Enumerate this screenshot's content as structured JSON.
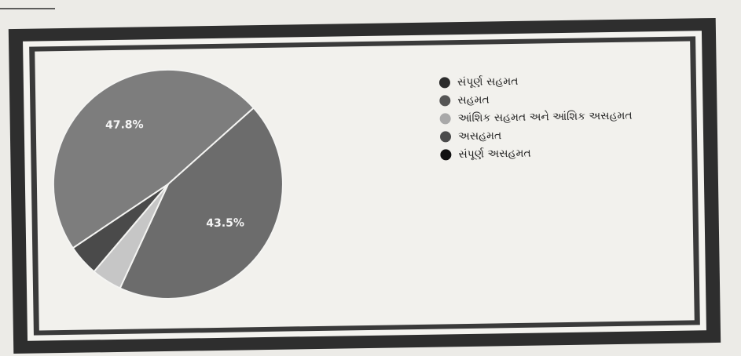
{
  "chart_data": {
    "type": "pie",
    "title": "",
    "legend_position": "right",
    "slices": [
      {
        "label": "સંપૂર્ણ સહમત",
        "value": 47.8,
        "value_label": "47.8%",
        "color": "#7d7d7d"
      },
      {
        "label": "સહમત",
        "value": 43.5,
        "value_label": "43.5%",
        "color": "#6c6c6c"
      },
      {
        "label": "આંશિક સહમત અને આંશિક અસહમત",
        "value": 4.3,
        "value_label": "",
        "color": "#c6c6c6"
      },
      {
        "label": "અસહમત",
        "value": 4.4,
        "value_label": "",
        "color": "#4a4a4a"
      },
      {
        "label": "સંપૂર્ણ અસહમત",
        "value": 0,
        "value_label": "",
        "color": "#1b1b1b"
      }
    ],
    "legend_colors": [
      "#2c2c2c",
      "#555555",
      "#a9a9a9",
      "#4c4c4c",
      "#111111"
    ]
  }
}
